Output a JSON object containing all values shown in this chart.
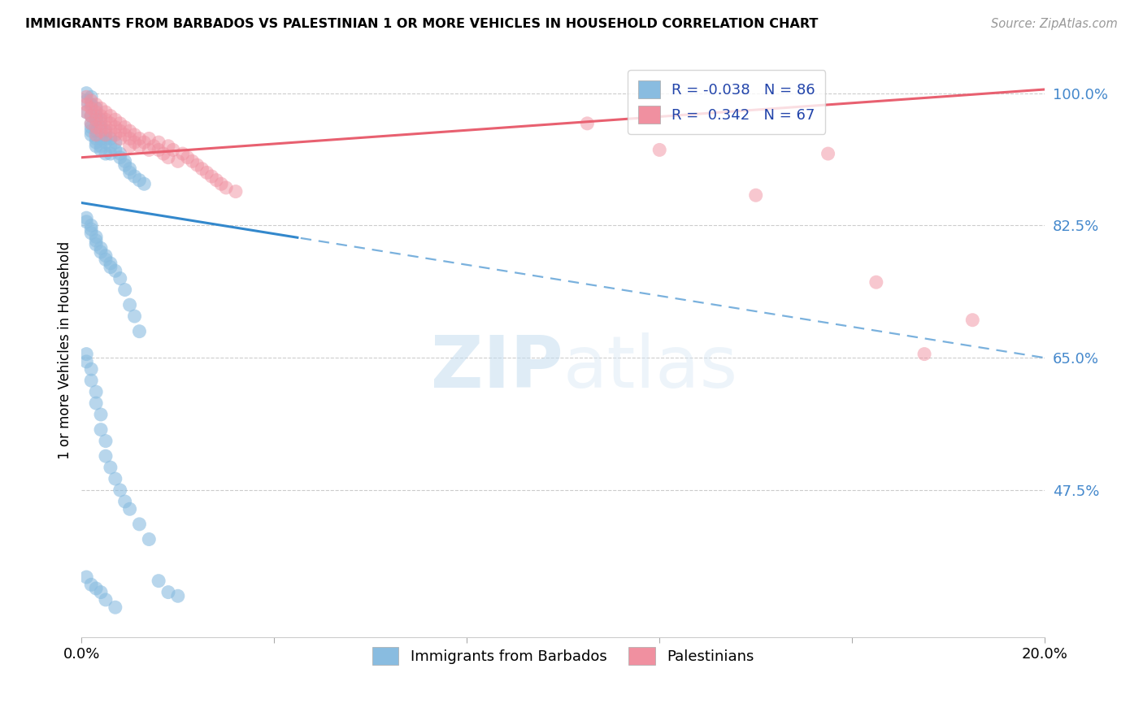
{
  "title": "IMMIGRANTS FROM BARBADOS VS PALESTINIAN 1 OR MORE VEHICLES IN HOUSEHOLD CORRELATION CHART",
  "source": "Source: ZipAtlas.com",
  "ylabel": "1 or more Vehicles in Household",
  "yticks": [
    47.5,
    65.0,
    82.5,
    100.0
  ],
  "ytick_labels": [
    "47.5%",
    "65.0%",
    "82.5%",
    "100.0%"
  ],
  "xmin": 0.0,
  "xmax": 0.2,
  "ymin": 28.0,
  "ymax": 104.0,
  "blue_color": "#89bce0",
  "pink_color": "#f090a0",
  "blue_line_color": "#3388cc",
  "pink_line_color": "#e86070",
  "watermark_zip": "ZIP",
  "watermark_atlas": "atlas",
  "legend_label1": "Immigrants from Barbados",
  "legend_label2": "Palestinians",
  "blue_line_x0": 0.0,
  "blue_line_y0": 85.5,
  "blue_line_x1": 0.2,
  "blue_line_y1": 65.0,
  "blue_line_solid_end": 0.045,
  "pink_line_x0": 0.0,
  "pink_line_y0": 91.5,
  "pink_line_x1": 0.2,
  "pink_line_y1": 100.5,
  "blue_x": [
    0.001,
    0.001,
    0.001,
    0.002,
    0.002,
    0.002,
    0.002,
    0.002,
    0.002,
    0.002,
    0.003,
    0.003,
    0.003,
    0.003,
    0.003,
    0.003,
    0.003,
    0.004,
    0.004,
    0.004,
    0.004,
    0.004,
    0.005,
    0.005,
    0.005,
    0.005,
    0.006,
    0.006,
    0.006,
    0.007,
    0.007,
    0.008,
    0.008,
    0.009,
    0.009,
    0.01,
    0.01,
    0.011,
    0.012,
    0.013,
    0.001,
    0.001,
    0.002,
    0.002,
    0.002,
    0.003,
    0.003,
    0.003,
    0.004,
    0.004,
    0.005,
    0.005,
    0.006,
    0.006,
    0.007,
    0.008,
    0.009,
    0.01,
    0.011,
    0.012,
    0.001,
    0.001,
    0.002,
    0.002,
    0.003,
    0.003,
    0.004,
    0.004,
    0.005,
    0.005,
    0.006,
    0.007,
    0.008,
    0.009,
    0.01,
    0.012,
    0.014,
    0.016,
    0.018,
    0.02,
    0.001,
    0.002,
    0.003,
    0.004,
    0.005,
    0.007
  ],
  "blue_y": [
    100.0,
    99.0,
    97.5,
    99.5,
    98.5,
    97.0,
    96.0,
    95.5,
    95.0,
    94.5,
    98.0,
    97.0,
    96.5,
    95.0,
    94.0,
    93.5,
    93.0,
    96.5,
    95.5,
    94.0,
    93.0,
    92.5,
    95.0,
    94.0,
    93.5,
    92.0,
    94.0,
    93.0,
    92.0,
    93.5,
    92.5,
    92.0,
    91.5,
    91.0,
    90.5,
    90.0,
    89.5,
    89.0,
    88.5,
    88.0,
    83.5,
    83.0,
    82.5,
    82.0,
    81.5,
    81.0,
    80.5,
    80.0,
    79.5,
    79.0,
    78.5,
    78.0,
    77.5,
    77.0,
    76.5,
    75.5,
    74.0,
    72.0,
    70.5,
    68.5,
    65.5,
    64.5,
    63.5,
    62.0,
    60.5,
    59.0,
    57.5,
    55.5,
    54.0,
    52.0,
    50.5,
    49.0,
    47.5,
    46.0,
    45.0,
    43.0,
    41.0,
    35.5,
    34.0,
    33.5,
    36.0,
    35.0,
    34.5,
    34.0,
    33.0,
    32.0
  ],
  "pink_x": [
    0.001,
    0.001,
    0.001,
    0.002,
    0.002,
    0.002,
    0.002,
    0.003,
    0.003,
    0.003,
    0.003,
    0.003,
    0.004,
    0.004,
    0.004,
    0.004,
    0.005,
    0.005,
    0.005,
    0.005,
    0.006,
    0.006,
    0.006,
    0.007,
    0.007,
    0.007,
    0.008,
    0.008,
    0.008,
    0.009,
    0.009,
    0.01,
    0.01,
    0.01,
    0.011,
    0.011,
    0.012,
    0.012,
    0.013,
    0.014,
    0.014,
    0.015,
    0.016,
    0.016,
    0.017,
    0.018,
    0.018,
    0.019,
    0.02,
    0.021,
    0.022,
    0.023,
    0.024,
    0.025,
    0.026,
    0.027,
    0.028,
    0.029,
    0.03,
    0.032,
    0.105,
    0.12,
    0.14,
    0.155,
    0.165,
    0.175,
    0.185
  ],
  "pink_y": [
    99.5,
    98.5,
    97.5,
    99.0,
    98.0,
    97.0,
    96.0,
    98.5,
    97.5,
    96.5,
    95.5,
    94.5,
    98.0,
    97.0,
    96.0,
    95.0,
    97.5,
    96.5,
    95.5,
    94.5,
    97.0,
    96.0,
    95.0,
    96.5,
    95.5,
    94.5,
    96.0,
    95.0,
    94.0,
    95.5,
    94.5,
    95.0,
    94.0,
    93.0,
    94.5,
    93.5,
    94.0,
    93.0,
    93.5,
    94.0,
    92.5,
    93.0,
    92.5,
    93.5,
    92.0,
    93.0,
    91.5,
    92.5,
    91.0,
    92.0,
    91.5,
    91.0,
    90.5,
    90.0,
    89.5,
    89.0,
    88.5,
    88.0,
    87.5,
    87.0,
    96.0,
    92.5,
    86.5,
    92.0,
    75.0,
    65.5,
    70.0
  ]
}
